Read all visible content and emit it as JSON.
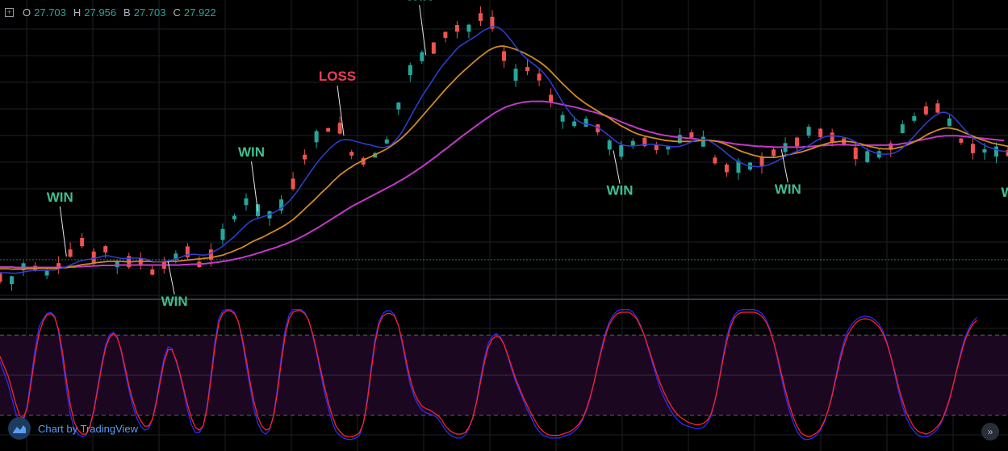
{
  "legend": {
    "o_label": "O",
    "o_value": "27.703",
    "h_label": "H",
    "h_value": "27.956",
    "b_label": "B",
    "b_value": "27.703",
    "c_label": "C",
    "c_value": "27.922"
  },
  "branding": {
    "text": "Chart by TradingView"
  },
  "colors": {
    "up": "#26a69a",
    "down": "#ef5350",
    "ma_fast": "#2f3fd6",
    "ma_mid": "#d08a22",
    "ma_slow": "#c23ac9",
    "win": "#3fbf8f",
    "loss": "#ef3b57",
    "stoch_k": "#2a2aff",
    "stoch_d": "#ff2222"
  },
  "chart_data": {
    "type": "candlestick",
    "price_series": [
      27.63,
      27.72,
      27.6,
      27.53,
      27.61,
      27.74,
      27.86,
      27.92,
      27.94,
      27.86,
      27.8,
      27.65,
      27.71,
      27.8,
      27.85,
      27.93,
      27.99,
      28.13,
      28.23,
      28.34,
      28.43,
      28.5,
      28.33,
      28.2,
      28.13,
      28.21,
      28.25,
      28.32,
      28.16,
      27.97,
      27.93,
      27.9,
      27.94,
      28.03,
      28.09,
      28.14,
      28.03,
      27.94,
      27.85,
      27.76,
      27.79,
      27.87,
      27.93,
      28.01,
      28.04,
      28.11,
      28.18,
      28.25,
      28.27,
      28.16,
      28.05,
      27.95,
      27.9,
      28.04,
      28.2,
      28.36,
      28.5,
      28.64,
      28.78,
      28.93,
      29.07,
      29.21,
      29.33,
      29.45,
      29.51,
      29.36,
      29.23,
      29.11,
      29.05,
      29.13,
      29.22,
      29.3,
      29.36,
      29.51,
      29.7,
      29.93,
      30.15,
      30.37,
      30.57,
      30.75,
      30.91,
      31.03,
      31.11,
      31.17,
      31.23,
      31.26,
      31.32,
      31.29,
      31.08,
      30.84,
      30.65,
      30.54,
      30.47,
      30.47,
      30.51,
      30.56,
      30.59,
      30.6,
      30.72,
      30.93,
      31.18,
      31.46,
      31.79,
      32.09,
      32.38,
      32.66,
      32.84,
      32.93,
      32.99,
      33.05,
      33.14,
      33.25,
      33.38,
      33.51,
      33.56,
      33.59,
      33.65,
      33.72,
      33.7,
      33.67,
      33.69,
      33.77,
      33.9,
      34.0,
      34.03,
      33.97,
      33.87,
      33.67,
      33.39,
      33.05,
      32.76,
      32.59,
      32.54,
      32.57,
      32.65,
      32.72,
      32.69,
      32.64,
      32.53,
      32.39,
      32.22,
      32.01,
      31.81,
      31.63,
      31.49,
      31.41,
      31.37,
      31.36,
      31.36,
      31.36,
      31.38,
      31.41,
      31.37,
      31.28,
      31.14,
      30.98,
      30.83,
      30.72,
      30.67,
      30.68,
      30.74,
      30.8,
      30.88,
      30.93,
      30.95,
      30.95,
      30.93,
      30.87,
      30.81,
      30.77,
      30.76,
      30.78,
      30.83,
      30.9,
      30.98,
      31.05,
      31.1,
      31.11,
      31.09,
      31.02,
      30.91,
      30.78,
      30.63,
      30.49,
      30.38,
      30.31,
      30.3,
      30.3,
      30.3,
      30.29,
      30.28,
      30.29,
      30.32,
      30.37,
      30.42,
      30.47,
      30.54,
      30.62,
      30.68,
      30.73,
      30.75,
      30.77,
      30.81,
      30.87,
      30.95,
      31.03,
      31.1,
      31.17,
      31.21,
      31.2,
      31.17,
      31.12,
      31.08,
      31.06,
      31.04,
      31.01,
      30.95,
      30.87,
      30.78,
      30.68,
      30.6,
      30.55,
      30.54,
      30.55,
      30.57,
      30.61,
      30.66,
      30.73,
      30.83,
      30.97,
      31.11,
      31.23,
      31.34,
      31.43,
      31.49,
      31.57,
      31.65,
      31.72,
      31.77,
      31.8,
      31.78,
      31.69,
      31.55,
      31.39,
      31.23,
      31.08,
      30.97,
      30.9,
      30.84,
      30.79,
      30.75,
      30.73,
      30.7,
      30.69,
      30.68,
      30.67,
      30.66,
      30.66,
      30.67
    ],
    "ma_fast_series": [
      27.74,
      27.73,
      27.73,
      27.72,
      27.72,
      27.73,
      27.75,
      27.77,
      27.78,
      27.79,
      27.79,
      27.79,
      27.79,
      27.8,
      27.8,
      27.82,
      27.85,
      27.88,
      27.92,
      27.96,
      28.0,
      28.03,
      28.05,
      28.06,
      28.08,
      28.1,
      28.13,
      28.15,
      28.14,
      28.12,
      28.1,
      28.08,
      28.08,
      28.08,
      28.09,
      28.09,
      28.09,
      28.07,
      28.04,
      28.01,
      28.0,
      28.0,
      28.01,
      28.02,
      28.04,
      28.07,
      28.1,
      28.14,
      28.17,
      28.18,
      28.18,
      28.17,
      28.16,
      28.17,
      28.21,
      28.26,
      28.32,
      28.38,
      28.46,
      28.54,
      28.62,
      28.71,
      28.81,
      28.9,
      28.98,
      29.03,
      29.06,
      29.09,
      29.12,
      29.16,
      29.2,
      29.25,
      29.31,
      29.39,
      29.48,
      29.59,
      29.71,
      29.85,
      29.99,
      30.13,
      30.27,
      30.4,
      30.52,
      30.63,
      30.73,
      30.82,
      30.9,
      30.96,
      30.98,
      30.98,
      30.97,
      30.94,
      30.92,
      30.89,
      30.87,
      30.85,
      30.82,
      30.8,
      30.79,
      30.81,
      30.85,
      30.94,
      31.05,
      31.19,
      31.36,
      31.53,
      31.71,
      31.88,
      32.04,
      32.19,
      32.33,
      32.48,
      32.62,
      32.76,
      32.88,
      32.99,
      33.1,
      33.21,
      33.29,
      33.35,
      33.41,
      33.47,
      33.53,
      33.6,
      33.66,
      33.71,
      33.74,
      33.74,
      33.7,
      33.62,
      33.51,
      33.39,
      33.26,
      33.14,
      33.03,
      32.95,
      32.87,
      32.8,
      32.72,
      32.63,
      32.51,
      32.38,
      32.22,
      32.06,
      31.9,
      31.76,
      31.63,
      31.52,
      31.44,
      31.39,
      31.36,
      31.35,
      31.32,
      31.28,
      31.22,
      31.15,
      31.07,
      30.99,
      30.92,
      30.87,
      30.84,
      30.83,
      30.83,
      30.84,
      30.85,
      30.86,
      30.87,
      30.87,
      30.86,
      30.85,
      30.84,
      30.82,
      30.81,
      30.81,
      30.82,
      30.85,
      30.89,
      30.93,
      30.97,
      30.99,
      30.99,
      30.97,
      30.93,
      30.87,
      30.8,
      30.73,
      30.65,
      30.57,
      30.5,
      30.44,
      30.4,
      30.36,
      30.34,
      30.33,
      30.32,
      30.33,
      30.35,
      30.38,
      30.42,
      30.47,
      30.52,
      30.58,
      30.62,
      30.66,
      30.7,
      30.74,
      30.79,
      30.84,
      30.9,
      30.96,
      31.01,
      31.05,
      31.07,
      31.08,
      31.07,
      31.06,
      31.04,
      31.02,
      30.98,
      30.93,
      30.87,
      30.8,
      30.74,
      30.7,
      30.66,
      30.64,
      30.63,
      30.63,
      30.64,
      30.66,
      30.71,
      30.78,
      30.87,
      30.97,
      31.07,
      31.18,
      31.28,
      31.38,
      31.47,
      31.55,
      31.61,
      31.65,
      31.65,
      31.61,
      31.54,
      31.44,
      31.33,
      31.22,
      31.12,
      31.03,
      30.96,
      30.9,
      30.85,
      30.8,
      30.77,
      30.74,
      30.71,
      30.7,
      30.68,
      30.67
    ],
    "ma_mid_series": [
      27.83,
      27.83,
      27.83,
      27.82,
      27.82,
      27.82,
      27.82,
      27.83,
      27.83,
      27.84,
      27.84,
      27.84,
      27.84,
      27.84,
      27.84,
      27.84,
      27.85,
      27.86,
      27.88,
      27.89,
      27.91,
      27.93,
      27.94,
      27.95,
      27.97,
      27.98,
      27.99,
      28.0,
      28.01,
      28.01,
      28.01,
      28.01,
      28.0,
      28.0,
      28.0,
      28.01,
      28.01,
      28.01,
      28.01,
      28.0,
      28.0,
      28.0,
      28.0,
      28.0,
      28.01,
      28.01,
      28.02,
      28.03,
      28.04,
      28.05,
      28.06,
      28.07,
      28.08,
      28.09,
      28.1,
      28.12,
      28.14,
      28.16,
      28.2,
      28.23,
      28.27,
      28.31,
      28.35,
      28.4,
      28.46,
      28.51,
      28.55,
      28.59,
      28.64,
      28.69,
      28.74,
      28.79,
      28.84,
      28.9,
      28.96,
      29.03,
      29.11,
      29.2,
      29.29,
      29.38,
      29.47,
      29.56,
      29.66,
      29.75,
      29.84,
      29.94,
      30.03,
      30.12,
      30.19,
      30.26,
      30.32,
      30.38,
      30.43,
      30.48,
      30.53,
      30.57,
      30.62,
      30.66,
      30.71,
      30.76,
      30.82,
      30.89,
      30.96,
      31.04,
      31.13,
      31.23,
      31.33,
      31.44,
      31.55,
      31.66,
      31.77,
      31.88,
      31.99,
      32.1,
      32.21,
      32.31,
      32.41,
      32.51,
      32.6,
      32.69,
      32.77,
      32.86,
      32.94,
      33.02,
      33.09,
      33.16,
      33.21,
      33.25,
      33.27,
      33.27,
      33.25,
      33.22,
      33.19,
      33.15,
      33.11,
      33.06,
      33.01,
      32.95,
      32.89,
      32.82,
      32.74,
      32.65,
      32.55,
      32.45,
      32.35,
      32.26,
      32.17,
      32.08,
      32.0,
      31.93,
      31.86,
      31.8,
      31.74,
      31.68,
      31.62,
      31.57,
      31.51,
      31.44,
      31.38,
      31.32,
      31.27,
      31.22,
      31.17,
      31.13,
      31.1,
      31.07,
      31.05,
      31.03,
      31.01,
      30.99,
      30.97,
      30.96,
      30.95,
      30.94,
      30.94,
      30.94,
      30.94,
      30.94,
      30.95,
      30.96,
      30.97,
      30.97,
      30.96,
      30.95,
      30.93,
      30.9,
      30.86,
      30.82,
      30.78,
      30.73,
      30.69,
      30.66,
      30.63,
      30.6,
      30.58,
      30.56,
      30.55,
      30.55,
      30.55,
      30.56,
      30.58,
      30.6,
      30.62,
      30.64,
      30.66,
      30.68,
      30.71,
      30.74,
      30.77,
      30.81,
      30.84,
      30.87,
      30.9,
      30.92,
      30.93,
      30.94,
      30.94,
      30.94,
      30.93,
      30.91,
      30.89,
      30.86,
      30.83,
      30.81,
      30.79,
      30.77,
      30.76,
      30.76,
      30.76,
      30.77,
      30.79,
      30.81,
      30.85,
      30.89,
      30.93,
      30.98,
      31.03,
      31.09,
      31.14,
      31.18,
      31.22,
      31.25,
      31.27,
      31.27,
      31.25,
      31.23,
      31.19,
      31.15,
      31.11,
      31.07,
      31.03,
      30.99,
      30.96,
      30.93,
      30.9,
      30.88,
      30.86,
      30.84,
      30.82
    ],
    "ma_slow_series": [
      27.87,
      27.87,
      27.87,
      27.87,
      27.86,
      27.86,
      27.86,
      27.86,
      27.86,
      27.86,
      27.86,
      27.86,
      27.86,
      27.86,
      27.86,
      27.86,
      27.86,
      27.86,
      27.87,
      27.87,
      27.88,
      27.88,
      27.89,
      27.89,
      27.9,
      27.9,
      27.91,
      27.91,
      27.91,
      27.91,
      27.92,
      27.92,
      27.92,
      27.92,
      27.92,
      27.92,
      27.92,
      27.92,
      27.92,
      27.92,
      27.92,
      27.92,
      27.92,
      27.92,
      27.92,
      27.92,
      27.92,
      27.93,
      27.93,
      27.94,
      27.94,
      27.95,
      27.95,
      27.96,
      27.97,
      27.98,
      27.99,
      28.01,
      28.02,
      28.04,
      28.06,
      28.08,
      28.1,
      28.13,
      28.15,
      28.18,
      28.21,
      28.24,
      28.27,
      28.3,
      28.33,
      28.36,
      28.4,
      28.43,
      28.47,
      28.51,
      28.55,
      28.6,
      28.65,
      28.7,
      28.76,
      28.81,
      28.87,
      28.93,
      28.99,
      29.05,
      29.11,
      29.17,
      29.23,
      29.29,
      29.35,
      29.4,
      29.45,
      29.5,
      29.55,
      29.6,
      29.65,
      29.7,
      29.75,
      29.8,
      29.85,
      29.9,
      29.96,
      30.01,
      30.07,
      30.13,
      30.19,
      30.26,
      30.32,
      30.39,
      30.46,
      30.53,
      30.6,
      30.68,
      30.75,
      30.82,
      30.9,
      30.97,
      31.05,
      31.12,
      31.19,
      31.26,
      31.33,
      31.4,
      31.47,
      31.53,
      31.6,
      31.66,
      31.71,
      31.76,
      31.8,
      31.83,
      31.86,
      31.88,
      31.9,
      31.91,
      31.92,
      31.92,
      31.92,
      31.92,
      31.91,
      31.9,
      31.88,
      31.86,
      31.84,
      31.82,
      31.8,
      31.78,
      31.76,
      31.73,
      31.71,
      31.68,
      31.66,
      31.63,
      31.6,
      31.57,
      31.53,
      31.5,
      31.46,
      31.42,
      31.38,
      31.34,
      31.31,
      31.27,
      31.24,
      31.21,
      31.18,
      31.16,
      31.13,
      31.11,
      31.09,
      31.08,
      31.06,
      31.05,
      31.04,
      31.03,
      31.02,
      31.01,
      31.0,
      30.99,
      30.98,
      30.97,
      30.96,
      30.95,
      30.94,
      30.93,
      30.91,
      30.9,
      30.88,
      30.87,
      30.86,
      30.85,
      30.84,
      30.83,
      30.82,
      30.82,
      30.81,
      30.81,
      30.8,
      30.8,
      30.8,
      30.8,
      30.8,
      30.8,
      30.8,
      30.8,
      30.81,
      30.81,
      30.82,
      30.83,
      30.84,
      30.84,
      30.85,
      30.85,
      30.86,
      30.86,
      30.86,
      30.86,
      30.85,
      30.85,
      30.85,
      30.85,
      30.85,
      30.85,
      30.85,
      30.85,
      30.85,
      30.85,
      30.86,
      30.86,
      30.87,
      30.89,
      30.9,
      30.92,
      30.94,
      30.96,
      30.98,
      31.0,
      31.02,
      31.04,
      31.06,
      31.07,
      31.08,
      31.08,
      31.08,
      31.08,
      31.07,
      31.06,
      31.05,
      31.04,
      31.03,
      31.02,
      31.01,
      31.0,
      30.99,
      30.98,
      30.97,
      30.96
    ],
    "stoch_k": [
      60,
      52,
      44,
      33,
      22,
      14,
      15,
      28,
      49,
      70,
      86,
      92,
      96,
      97,
      94,
      82,
      62,
      40,
      21,
      10,
      6,
      4,
      5,
      12,
      24,
      41,
      58,
      72,
      80,
      82,
      79,
      68,
      53,
      39,
      27,
      18,
      12,
      9,
      10,
      17,
      31,
      48,
      63,
      71,
      70,
      61,
      51,
      38,
      24,
      13,
      7,
      7,
      12,
      27,
      50,
      75,
      92,
      98,
      99,
      99,
      97,
      90,
      76,
      58,
      41,
      25,
      14,
      8,
      6,
      9,
      20,
      40,
      64,
      84,
      95,
      99,
      99,
      99,
      97,
      91,
      80,
      67,
      52,
      38,
      26,
      15,
      8,
      5,
      3,
      2,
      2,
      3,
      5,
      14,
      32,
      56,
      77,
      90,
      96,
      98,
      98,
      95,
      87,
      73,
      57,
      43,
      34,
      28,
      24,
      22,
      21,
      20,
      18,
      14,
      9,
      6,
      4,
      3,
      3,
      5,
      10,
      18,
      31,
      48,
      63,
      74,
      79,
      81,
      79,
      73,
      64,
      54,
      45,
      38,
      31,
      24,
      18,
      12,
      8,
      5,
      4,
      3,
      3,
      3,
      4,
      5,
      6,
      8,
      11,
      16,
      23,
      32,
      44,
      58,
      71,
      82,
      90,
      95,
      98,
      99,
      99,
      99,
      97,
      93,
      87,
      79,
      69,
      59,
      49,
      40,
      33,
      27,
      22,
      18,
      15,
      13,
      12,
      11,
      10,
      10,
      11,
      14,
      20,
      31,
      46,
      63,
      78,
      89,
      95,
      98,
      99,
      99,
      99,
      99,
      98,
      96,
      92,
      85,
      75,
      62,
      48,
      35,
      24,
      15,
      8,
      4,
      2,
      2,
      3,
      5,
      9,
      15,
      24,
      36,
      50,
      64,
      75,
      83,
      88,
      91,
      93,
      94,
      94,
      93,
      91,
      88,
      83,
      75,
      64,
      51,
      38,
      27,
      18,
      12,
      8,
      5,
      4,
      4,
      5,
      7,
      10,
      15,
      22,
      31,
      43,
      56,
      68,
      78,
      85,
      90,
      93
    ],
    "stoch_d": [
      64,
      57,
      50,
      40,
      29,
      20,
      18,
      26,
      45,
      65,
      81,
      90,
      95,
      96,
      93,
      84,
      67,
      46,
      28,
      15,
      9,
      6,
      6,
      11,
      23,
      39,
      56,
      70,
      78,
      81,
      78,
      69,
      56,
      42,
      31,
      22,
      16,
      12,
      12,
      17,
      29,
      45,
      60,
      69,
      69,
      62,
      52,
      40,
      28,
      18,
      11,
      9,
      12,
      25,
      47,
      71,
      89,
      96,
      98,
      98,
      96,
      90,
      78,
      62,
      45,
      30,
      19,
      12,
      9,
      10,
      19,
      37,
      60,
      80,
      92,
      97,
      98,
      98,
      96,
      91,
      81,
      69,
      55,
      42,
      30,
      20,
      12,
      8,
      5,
      4,
      4,
      5,
      7,
      14,
      30,
      53,
      74,
      88,
      94,
      96,
      96,
      94,
      87,
      75,
      60,
      47,
      37,
      31,
      27,
      25,
      24,
      22,
      20,
      17,
      12,
      9,
      7,
      6,
      6,
      7,
      11,
      18,
      30,
      45,
      60,
      71,
      77,
      79,
      78,
      73,
      65,
      56,
      47,
      40,
      33,
      27,
      21,
      16,
      11,
      8,
      6,
      5,
      5,
      5,
      6,
      7,
      8,
      10,
      13,
      17,
      24,
      33,
      44,
      57,
      69,
      80,
      88,
      93,
      96,
      97,
      97,
      97,
      95,
      92,
      86,
      79,
      70,
      61,
      52,
      44,
      37,
      31,
      26,
      22,
      19,
      17,
      15,
      14,
      13,
      13,
      14,
      16,
      21,
      31,
      45,
      61,
      75,
      86,
      93,
      96,
      97,
      97,
      97,
      97,
      96,
      94,
      90,
      84,
      75,
      64,
      51,
      39,
      28,
      19,
      12,
      7,
      5,
      4,
      5,
      7,
      10,
      16,
      24,
      35,
      48,
      61,
      72,
      80,
      85,
      89,
      91,
      92,
      92,
      91,
      89,
      86,
      81,
      74,
      64,
      53,
      41,
      31,
      22,
      16,
      11,
      8,
      7,
      6,
      7,
      9,
      12,
      16,
      23,
      32,
      43,
      55,
      66,
      76,
      83,
      88,
      91
    ],
    "signals": [
      {
        "label": "WIN",
        "candle": 17,
        "dir": "up"
      },
      {
        "label": "WIN",
        "candle": 43,
        "dir": "down"
      },
      {
        "label": "WIN",
        "candle": 66,
        "dir": "up"
      },
      {
        "label": "LOSS",
        "candle": 88,
        "dir": "up"
      },
      {
        "label": "WIN",
        "candle": 109,
        "dir": "up"
      },
      {
        "label": "WIN",
        "candle": 157,
        "dir": "down"
      },
      {
        "label": "WIN",
        "candle": 200,
        "dir": "down"
      },
      {
        "label": "WIN",
        "candle": 347,
        "dir": "down"
      },
      {
        "label": "WIN",
        "candle": 394,
        "dir": "down"
      }
    ]
  }
}
